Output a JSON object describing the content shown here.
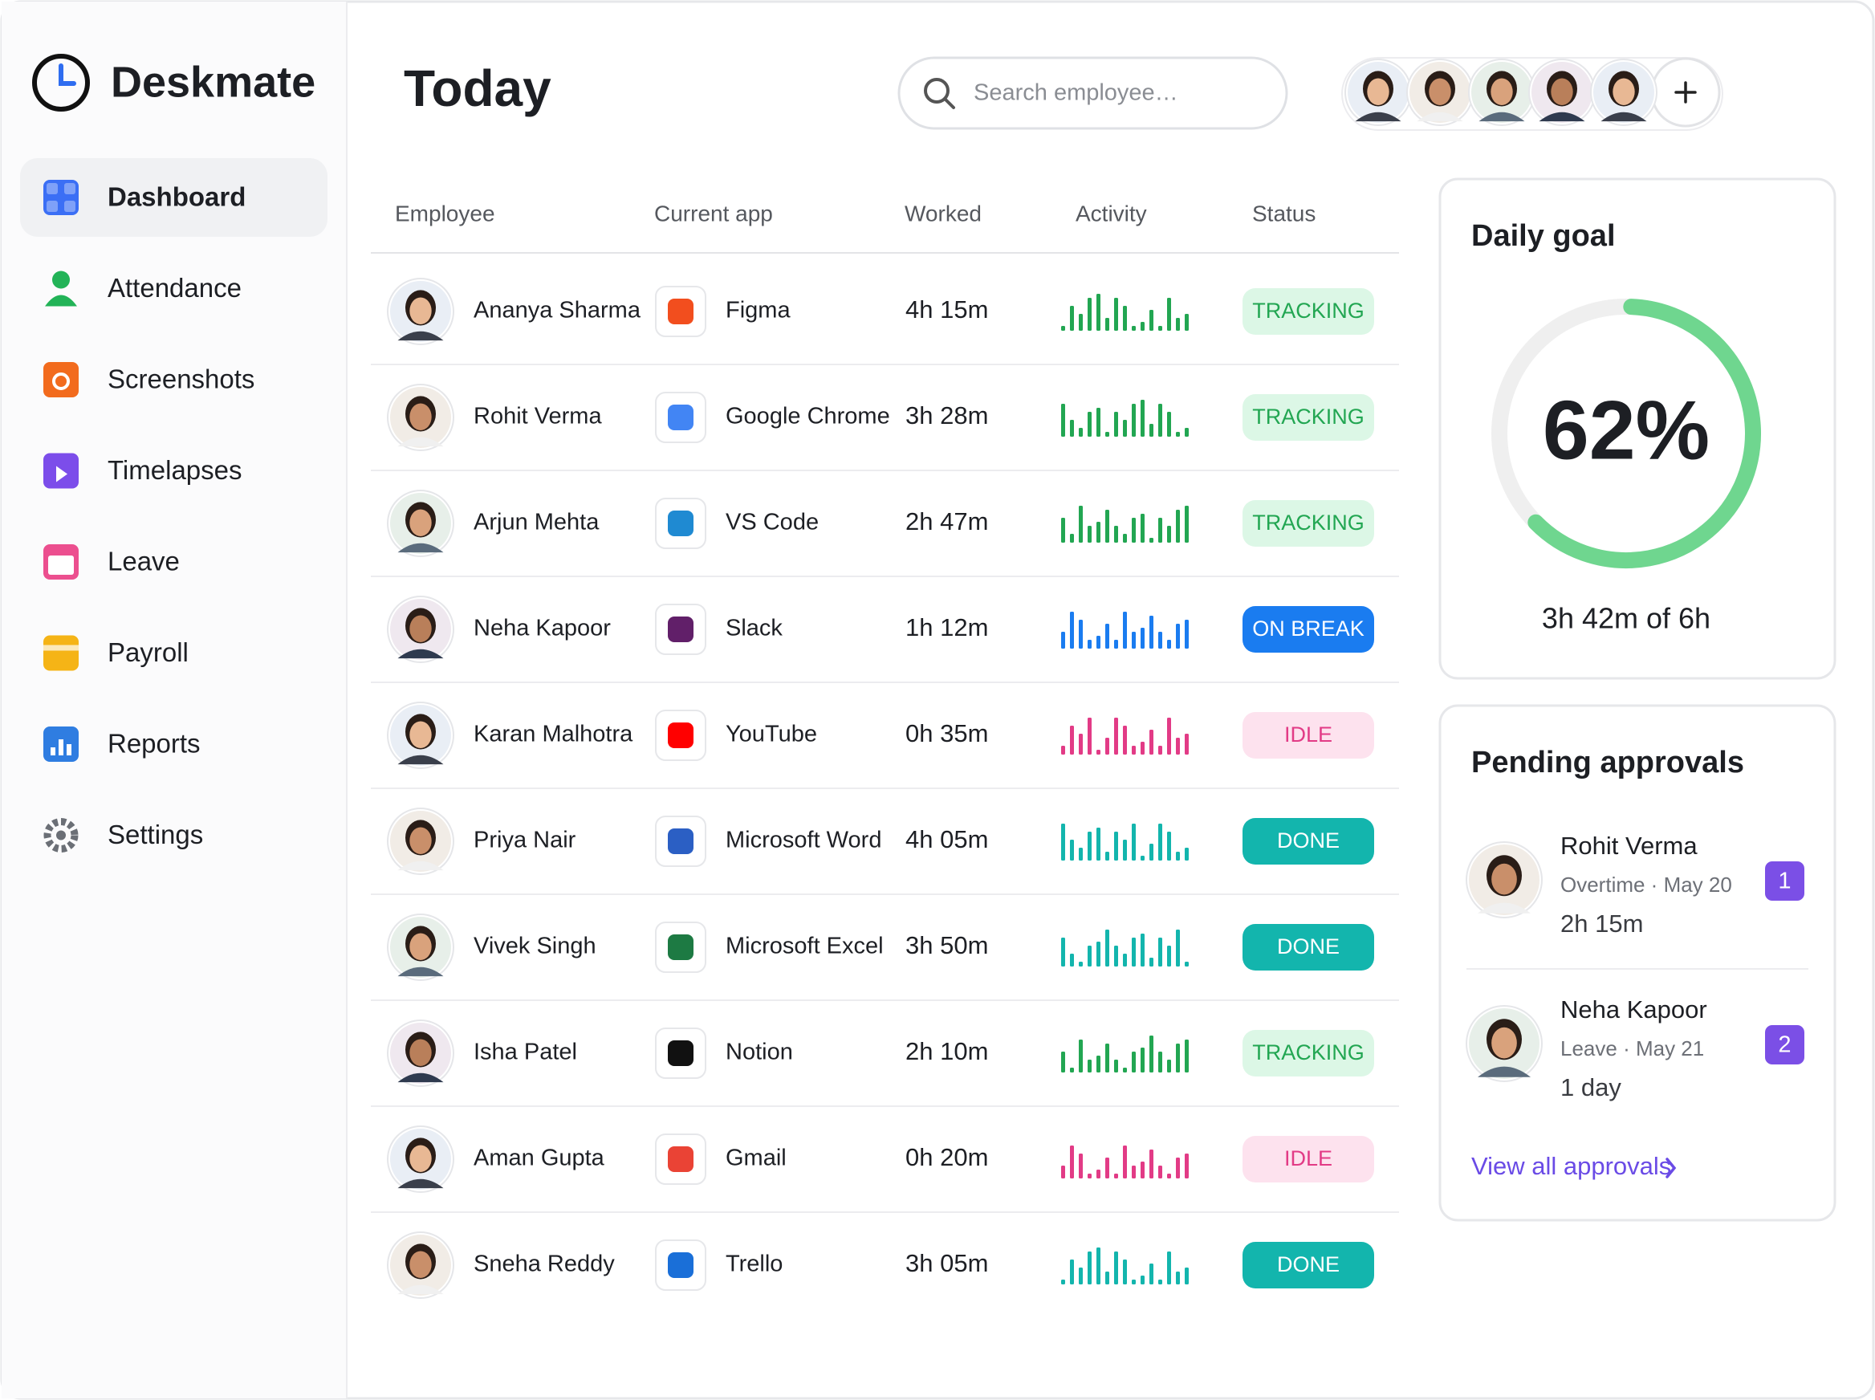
{
  "sidebar": {
    "brand": "Deskmate",
    "nav": [
      {
        "label": "Dashboard",
        "color": "#3b6ff5",
        "active": true
      },
      {
        "label": "Attendance",
        "color": "#22b357",
        "active": false
      },
      {
        "label": "Screenshots",
        "color": "#f26b1d",
        "active": false
      },
      {
        "label": "Timelapses",
        "color": "#7c4dea",
        "active": false
      },
      {
        "label": "Leave",
        "color": "#ec4f8f",
        "active": false
      },
      {
        "label": "Payroll",
        "color": "#f5b416",
        "active": false
      },
      {
        "label": "Reports",
        "color": "#2f7de1",
        "active": false
      },
      {
        "label": "Settings",
        "color": "#6b6f76",
        "active": false
      }
    ]
  },
  "header": {
    "title": "Today",
    "search_placeholder": "Search employee…"
  },
  "table": {
    "columns": [
      "Employee",
      "Current app",
      "Worked",
      "Activity",
      "Status"
    ],
    "rows": [
      {
        "employee": "Ananya Sharma",
        "app": "Figma",
        "app_color": "#f24e1e",
        "worked": "4h 15m",
        "status": {
          "label": "TRACKING",
          "color": "#22a652",
          "background": "#dcf7e6"
        }
      },
      {
        "employee": "Rohit Verma",
        "app": "Google Chrome",
        "app_color": "#4285f4",
        "worked": "3h 28m",
        "status": {
          "label": "TRACKING",
          "color": "#22a652",
          "background": "#dcf7e6"
        }
      },
      {
        "employee": "Arjun Mehta",
        "app": "VS Code",
        "app_color": "#1f8ad2",
        "worked": "2h 47m",
        "status": {
          "label": "TRACKING",
          "color": "#22a652",
          "background": "#dcf7e6"
        }
      },
      {
        "employee": "Neha Kapoor",
        "app": "Slack",
        "app_color": "#611f69",
        "worked": "1h 12m",
        "status": {
          "label": "ON BREAK",
          "color": "#1a7cf0",
          "background": "#1a7cf0"
        }
      },
      {
        "employee": "Karan Malhotra",
        "app": "YouTube",
        "app_color": "#ff0000",
        "worked": "0h 35m",
        "status": {
          "label": "IDLE",
          "color": "#e23b86",
          "background": "#fde2ee"
        }
      },
      {
        "employee": "Priya Nair",
        "app": "Microsoft Word",
        "app_color": "#2b5fc4",
        "worked": "4h 05m",
        "status": {
          "label": "DONE",
          "color": "#13b5ad",
          "background": "#13b5ad"
        }
      },
      {
        "employee": "Vivek Singh",
        "app": "Microsoft Excel",
        "app_color": "#1d7a43",
        "worked": "3h 50m",
        "status": {
          "label": "DONE",
          "color": "#13b5ad",
          "background": "#13b5ad"
        }
      },
      {
        "employee": "Isha Patel",
        "app": "Notion",
        "app_color": "#111111",
        "worked": "2h 10m",
        "status": {
          "label": "TRACKING",
          "color": "#22a652",
          "background": "#dcf7e6"
        }
      },
      {
        "employee": "Aman Gupta",
        "app": "Gmail",
        "app_color": "#ea4335",
        "worked": "0h 20m",
        "status": {
          "label": "IDLE",
          "color": "#e23b86",
          "background": "#fde2ee"
        }
      },
      {
        "employee": "Sneha Reddy",
        "app": "Trello",
        "app_color": "#1a6fd8",
        "worked": "3h 05m",
        "status": {
          "label": "DONE",
          "color": "#13b5ad",
          "background": "#13b5ad"
        }
      }
    ]
  },
  "daily_goal": {
    "title": "Daily goal",
    "progress": {
      "value": 62,
      "label": "62%"
    },
    "caption": "3h 42m of 6h"
  },
  "pending_approvals": {
    "title": "Pending approvals",
    "items": [
      {
        "name": "Rohit Verma",
        "detail": "Overtime · May 20",
        "amount": "2h 15m",
        "count": 1
      },
      {
        "name": "Neha Kapoor",
        "detail": "Leave · May 21",
        "amount": "1 day",
        "count": 2
      }
    ],
    "link": "View all approvals"
  }
}
